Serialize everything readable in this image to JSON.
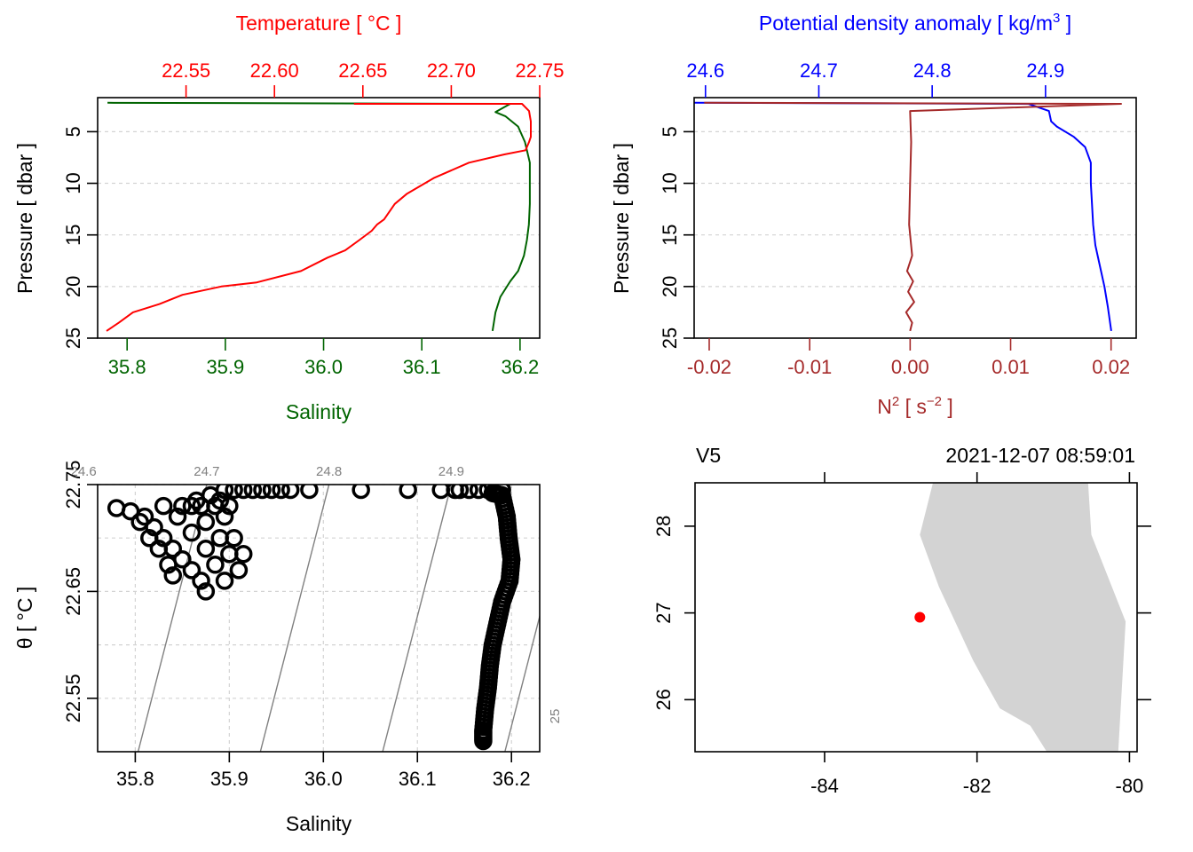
{
  "colors": {
    "temperature": "#ff0000",
    "salinity": "#006400",
    "density": "#0000ff",
    "n2": "#a52a2a",
    "land": "#d3d3d3",
    "isopycnal": "#808080",
    "station": "#ff0000",
    "grid": "#d3d3d3",
    "axis": "#000000"
  },
  "chart_data": [
    {
      "id": "temp_sal_profile",
      "type": "line",
      "top_axis_label": "Temperature [ °C ]",
      "bottom_axis_label": "Salinity",
      "ylabel": "Pressure [ dbar ]",
      "ylim": [
        25,
        1.7
      ],
      "y_ticks": [
        "5",
        "10",
        "15",
        "20",
        "25"
      ],
      "top_xlim": [
        22.5,
        22.75
      ],
      "top_ticks": [
        "22.55",
        "22.60",
        "22.65",
        "22.70",
        "22.75"
      ],
      "bottom_xlim": [
        35.77,
        36.22
      ],
      "bottom_ticks": [
        "35.8",
        "35.9",
        "36.0",
        "36.1",
        "36.2"
      ],
      "series": [
        {
          "name": "Temperature",
          "axis": "top",
          "x": [
            22.645,
            22.74,
            22.744,
            22.745,
            22.745,
            22.744,
            22.742,
            22.73,
            22.71,
            22.69,
            22.675,
            22.668,
            22.662,
            22.658,
            22.655,
            22.648,
            22.64,
            22.63,
            22.615,
            22.59,
            22.57,
            22.548,
            22.535,
            22.52,
            22.512,
            22.505
          ],
          "y": [
            2.3,
            2.3,
            3.0,
            4.0,
            5.5,
            6.0,
            6.8,
            7.2,
            8.0,
            9.5,
            11.0,
            12.0,
            13.5,
            14.0,
            14.6,
            15.5,
            16.5,
            17.2,
            18.5,
            19.6,
            20.0,
            20.8,
            21.7,
            22.5,
            23.5,
            24.3
          ]
        },
        {
          "name": "Salinity",
          "axis": "bottom",
          "x": [
            35.78,
            36.19,
            36.175,
            36.185,
            36.198,
            36.205,
            36.21,
            36.21,
            36.21,
            36.209,
            36.207,
            36.204,
            36.198,
            36.19,
            36.18,
            36.175,
            36.172
          ],
          "y": [
            2.2,
            2.3,
            3.1,
            3.5,
            4.5,
            6.0,
            8.0,
            10.0,
            12.0,
            14.0,
            15.5,
            17.0,
            18.5,
            19.5,
            21.0,
            22.5,
            24.3
          ]
        }
      ]
    },
    {
      "id": "density_n2_profile",
      "type": "line",
      "top_axis_label": "Potential density anomaly [ kg/m",
      "top_axis_label_sup": "3",
      "top_axis_label_end": " ]",
      "bottom_axis_label": "N",
      "bottom_axis_label_sup": "2",
      "bottom_axis_label_unit": " [ s",
      "bottom_axis_label_unit_sup": "−2",
      "bottom_axis_label_end": " ]",
      "ylabel": "Pressure [ dbar ]",
      "ylim": [
        25,
        1.7
      ],
      "y_ticks": [
        "5",
        "10",
        "15",
        "20",
        "25"
      ],
      "top_xlim": [
        24.59,
        24.98
      ],
      "top_ticks": [
        "24.6",
        "24.7",
        "24.8",
        "24.9"
      ],
      "bottom_xlim": [
        -0.0215,
        0.0225
      ],
      "bottom_ticks": [
        "-0.02",
        "-0.01",
        "0.00",
        "0.01",
        "0.02"
      ],
      "series": [
        {
          "name": "Potential density anomaly",
          "axis": "top",
          "x": [
            24.59,
            24.885,
            24.903,
            24.905,
            24.91,
            24.925,
            24.935,
            24.94,
            24.94,
            24.941,
            24.942,
            24.944,
            24.948,
            24.952,
            24.955,
            24.958
          ],
          "y": [
            2.2,
            2.3,
            3.0,
            4.0,
            4.5,
            5.5,
            6.5,
            8.0,
            10.0,
            12.0,
            14.0,
            16.0,
            18.0,
            20.0,
            22.0,
            24.3
          ]
        },
        {
          "name": "N2",
          "axis": "bottom",
          "x": [
            -0.0205,
            0.021,
            0.0,
            0.0001,
            0.0,
            -0.0001,
            0.0002,
            -0.0003,
            0.0003,
            -0.0002,
            0.0004,
            -0.0004,
            0.0002,
            0.0
          ],
          "y": [
            2.2,
            2.3,
            3.0,
            6.0,
            10.0,
            14.0,
            17.0,
            18.5,
            19.5,
            20.5,
            21.5,
            22.5,
            23.5,
            24.3
          ]
        }
      ]
    },
    {
      "id": "ts_diagram",
      "type": "scatter",
      "xlabel": "Salinity",
      "ylabel": "θ [ °C ]",
      "xlim": [
        35.76,
        36.23
      ],
      "ylim": [
        22.5,
        22.75
      ],
      "x_ticks": [
        "35.8",
        "35.9",
        "36.0",
        "36.1",
        "36.2"
      ],
      "y_ticks": [
        "22.55",
        "22.65",
        "22.75"
      ],
      "isopycnal_labels": [
        "24.6",
        "24.7",
        "24.8",
        "24.9",
        "25"
      ],
      "points": [
        [
          36.18,
          22.742
        ],
        [
          36.19,
          22.74
        ],
        [
          36.195,
          22.72
        ],
        [
          36.197,
          22.7
        ],
        [
          36.2,
          22.68
        ],
        [
          36.198,
          22.66
        ],
        [
          36.19,
          22.64
        ],
        [
          36.185,
          22.62
        ],
        [
          36.18,
          22.6
        ],
        [
          36.177,
          22.58
        ],
        [
          36.175,
          22.56
        ],
        [
          36.172,
          22.54
        ],
        [
          36.17,
          22.52
        ],
        [
          36.17,
          22.51
        ],
        [
          36.19,
          22.745
        ],
        [
          36.175,
          22.745
        ],
        [
          36.165,
          22.745
        ],
        [
          36.155,
          22.745
        ],
        [
          36.145,
          22.745
        ],
        [
          36.14,
          22.745
        ],
        [
          36.125,
          22.745
        ],
        [
          36.09,
          22.745
        ],
        [
          36.04,
          22.745
        ],
        [
          35.985,
          22.745
        ],
        [
          35.965,
          22.745
        ],
        [
          35.955,
          22.745
        ],
        [
          35.945,
          22.745
        ],
        [
          35.935,
          22.745
        ],
        [
          35.925,
          22.745
        ],
        [
          35.915,
          22.745
        ],
        [
          35.905,
          22.745
        ],
        [
          35.895,
          22.745
        ],
        [
          35.78,
          22.728
        ],
        [
          35.795,
          22.725
        ],
        [
          35.81,
          22.72
        ],
        [
          35.82,
          22.71
        ],
        [
          35.83,
          22.7
        ],
        [
          35.84,
          22.69
        ],
        [
          35.85,
          22.68
        ],
        [
          35.86,
          22.67
        ],
        [
          35.87,
          22.66
        ],
        [
          35.875,
          22.65
        ],
        [
          35.805,
          22.715
        ],
        [
          35.815,
          22.7
        ],
        [
          35.825,
          22.69
        ],
        [
          35.835,
          22.675
        ],
        [
          35.84,
          22.665
        ],
        [
          35.83,
          22.73
        ],
        [
          35.845,
          22.72
        ],
        [
          35.86,
          22.705
        ],
        [
          35.875,
          22.69
        ],
        [
          35.885,
          22.675
        ],
        [
          35.895,
          22.66
        ],
        [
          35.86,
          22.73
        ],
        [
          35.875,
          22.715
        ],
        [
          35.89,
          22.7
        ],
        [
          35.9,
          22.685
        ],
        [
          35.91,
          22.67
        ],
        [
          35.885,
          22.73
        ],
        [
          35.895,
          22.72
        ],
        [
          35.905,
          22.7
        ],
        [
          35.915,
          22.685
        ],
        [
          35.9,
          22.73
        ],
        [
          35.85,
          22.73
        ],
        [
          35.87,
          22.73
        ],
        [
          35.89,
          22.735
        ],
        [
          35.88,
          22.74
        ],
        [
          35.865,
          22.735
        ]
      ]
    },
    {
      "id": "station_map",
      "type": "map",
      "station_name": "V5",
      "datetime": "2021-12-07 08:59:01",
      "xlim": [
        -85.7,
        -79.9
      ],
      "ylim": [
        25.4,
        28.5
      ],
      "x_ticks": [
        "-84",
        "-82",
        "-80"
      ],
      "y_ticks": [
        "26",
        "27",
        "28"
      ],
      "station": {
        "lon": -82.75,
        "lat": 26.95
      },
      "land_polygon": [
        [
          -82.55,
          28.6
        ],
        [
          -80.55,
          28.6
        ],
        [
          -80.5,
          27.9
        ],
        [
          -80.05,
          26.9
        ],
        [
          -80.15,
          25.35
        ],
        [
          -81.05,
          25.35
        ],
        [
          -81.3,
          25.7
        ],
        [
          -81.7,
          25.9
        ],
        [
          -82.05,
          26.45
        ],
        [
          -82.5,
          27.3
        ],
        [
          -82.75,
          27.9
        ]
      ]
    }
  ]
}
